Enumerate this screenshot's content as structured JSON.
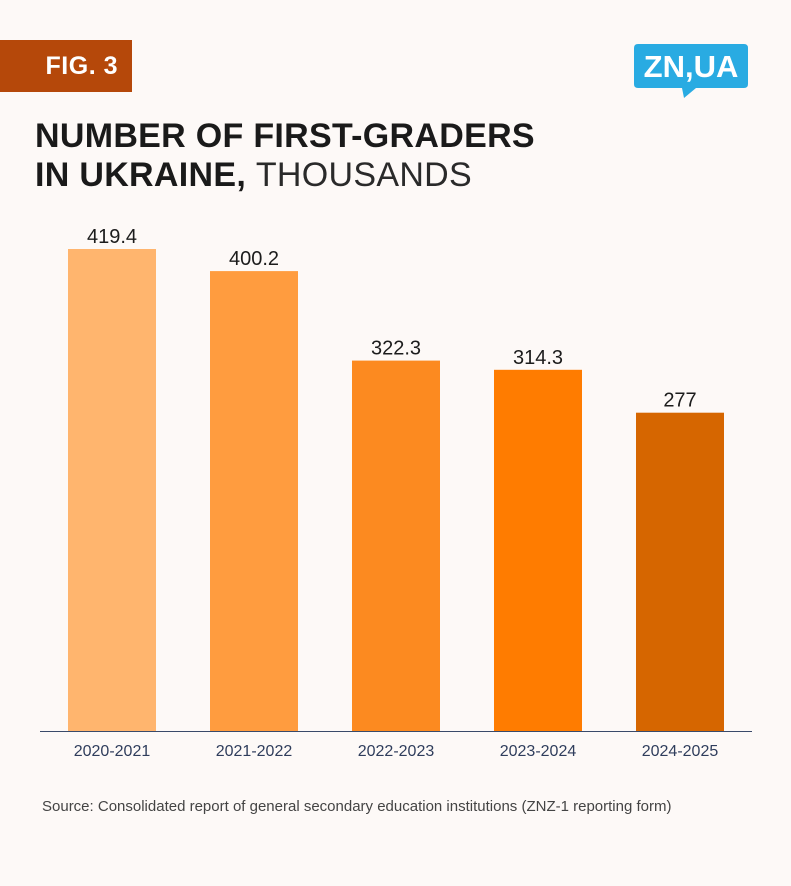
{
  "badge": {
    "label": "FIG. 3"
  },
  "logo": {
    "text": "ZN,UA",
    "color": "#29abe2",
    "icon": "zn-ua-logo-icon"
  },
  "title": {
    "line1": "NUMBER OF FIRST-GRADERS",
    "line2_bold": "IN UKRAINE,",
    "line2_light": "THOUSANDS"
  },
  "chart_data": {
    "type": "bar",
    "categories": [
      "2020-2021",
      "2021-2022",
      "2022-2023",
      "2023-2024",
      "2024-2025"
    ],
    "values": [
      419.4,
      400.2,
      322.3,
      314.3,
      277
    ],
    "value_labels": [
      "419.4",
      "400.2",
      "322.3",
      "314.3",
      "277"
    ],
    "colors": [
      "#ffb56e",
      "#ff9c3f",
      "#fc8a20",
      "#ff7c00",
      "#d66600"
    ],
    "ylim": [
      0,
      419.4
    ],
    "grid": false,
    "axis_color": "#3a4a6a"
  },
  "source": {
    "text": "Source: Consolidated report of general secondary education institutions (ZNZ-1 reporting form)"
  }
}
